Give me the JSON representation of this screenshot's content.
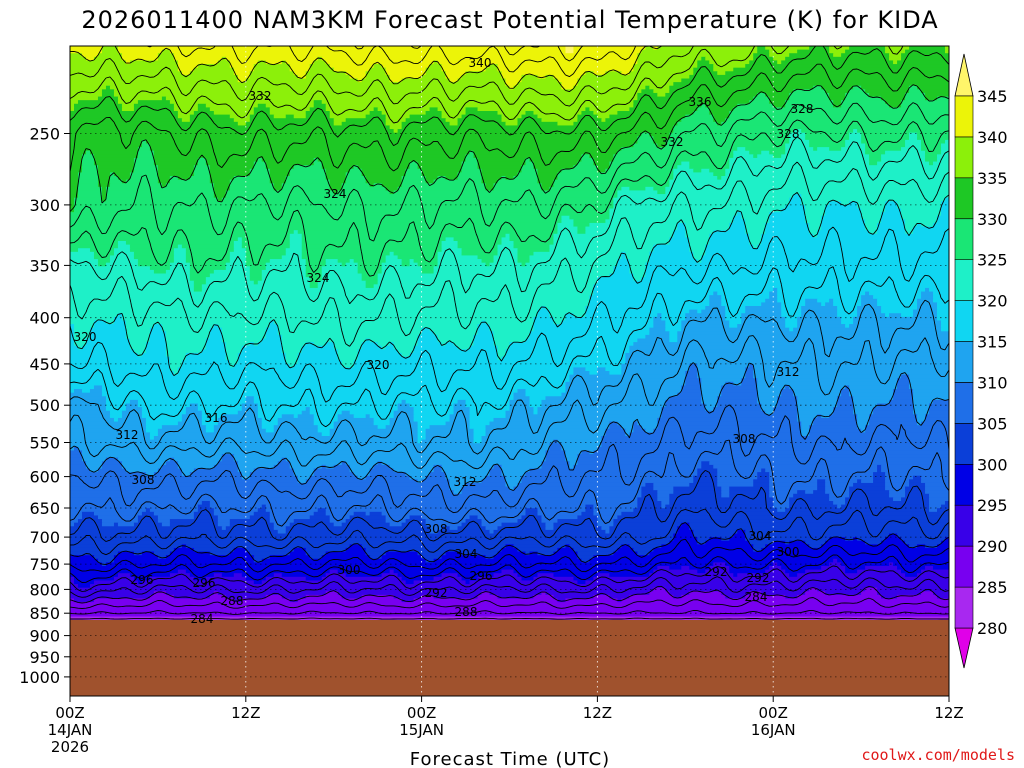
{
  "chart_data": {
    "type": "heatmap",
    "title": "2026011400 NAM3KM Forecast Potential Temperature (K) for KIDA",
    "xlabel": "Forecast Time (UTC)",
    "ylabel": "",
    "credit": "coolwx.com/models",
    "y_axis": {
      "unit": "hPa",
      "scale": "log",
      "range": [
        200,
        1050
      ],
      "ticks": [
        "250",
        "300",
        "350",
        "400",
        "450",
        "500",
        "550",
        "600",
        "650",
        "700",
        "750",
        "800",
        "850",
        "900",
        "950",
        "1000"
      ]
    },
    "x_axis": {
      "unit": "hours",
      "range": [
        0,
        60
      ],
      "ticks": [
        {
          "hour": 0,
          "lines": [
            "00Z",
            "14JAN",
            "2026"
          ]
        },
        {
          "hour": 12,
          "lines": [
            "12Z"
          ]
        },
        {
          "hour": 24,
          "lines": [
            "00Z",
            "15JAN"
          ]
        },
        {
          "hour": 36,
          "lines": [
            "12Z"
          ]
        },
        {
          "hour": 48,
          "lines": [
            "00Z",
            "16JAN"
          ]
        },
        {
          "hour": 60,
          "lines": [
            "12Z"
          ]
        }
      ]
    },
    "colorbar": {
      "levels": [
        "280",
        "285",
        "290",
        "295",
        "300",
        "305",
        "310",
        "315",
        "320",
        "325",
        "330",
        "335",
        "340",
        "345"
      ],
      "colors": [
        "#e000e8",
        "#a828f0",
        "#7800f0",
        "#3800e8",
        "#0000e6",
        "#0b3fd8",
        "#1f6fe8",
        "#1fa4f0",
        "#10d6f2",
        "#1ef0c8",
        "#1ae675",
        "#1ec825",
        "#8cf00a",
        "#ecf408",
        "#fff56a"
      ],
      "extend": "both"
    },
    "ground": {
      "color": "#a0522d",
      "pressure": 865
    },
    "contour_interval": 2,
    "contour_labels": [
      "340",
      "332",
      "336",
      "328",
      "324",
      "332",
      "328",
      "324",
      "320",
      "320",
      "316",
      "312",
      "312",
      "308",
      "312",
      "308",
      "308",
      "304",
      "304",
      "300",
      "300",
      "296",
      "296",
      "292",
      "296",
      "292",
      "292",
      "288",
      "288",
      "284",
      "284"
    ],
    "theta_profiles": [
      {
        "hour": 0,
        "profile": [
          [
            1000,
            283
          ],
          [
            865,
            283.5
          ],
          [
            850,
            286
          ],
          [
            800,
            293
          ],
          [
            750,
            299
          ],
          [
            700,
            303
          ],
          [
            650,
            306
          ],
          [
            600,
            308
          ],
          [
            550,
            312
          ],
          [
            500,
            314
          ],
          [
            450,
            318
          ],
          [
            400,
            321
          ],
          [
            350,
            324
          ],
          [
            300,
            330
          ],
          [
            250,
            331
          ],
          [
            200,
            340
          ]
        ]
      },
      {
        "hour": 6,
        "profile": [
          [
            1000,
            283
          ],
          [
            865,
            283.5
          ],
          [
            850,
            286
          ],
          [
            800,
            292
          ],
          [
            750,
            298
          ],
          [
            700,
            303
          ],
          [
            650,
            306
          ],
          [
            600,
            309
          ],
          [
            550,
            313
          ],
          [
            500,
            316
          ],
          [
            450,
            319
          ],
          [
            400,
            321
          ],
          [
            350,
            325
          ],
          [
            300,
            328
          ],
          [
            250,
            332
          ],
          [
            200,
            342
          ]
        ]
      },
      {
        "hour": 12,
        "profile": [
          [
            1000,
            283
          ],
          [
            865,
            283.5
          ],
          [
            850,
            286
          ],
          [
            800,
            292
          ],
          [
            750,
            298
          ],
          [
            700,
            303
          ],
          [
            650,
            306
          ],
          [
            600,
            309
          ],
          [
            550,
            313
          ],
          [
            500,
            316
          ],
          [
            450,
            319
          ],
          [
            400,
            322
          ],
          [
            350,
            325
          ],
          [
            300,
            328
          ],
          [
            250,
            333
          ],
          [
            200,
            342
          ]
        ]
      },
      {
        "hour": 18,
        "profile": [
          [
            1000,
            283
          ],
          [
            865,
            283.5
          ],
          [
            850,
            286
          ],
          [
            800,
            292
          ],
          [
            750,
            298
          ],
          [
            700,
            303
          ],
          [
            650,
            306
          ],
          [
            600,
            309
          ],
          [
            550,
            313
          ],
          [
            500,
            316
          ],
          [
            450,
            319
          ],
          [
            400,
            322
          ],
          [
            350,
            325
          ],
          [
            300,
            328
          ],
          [
            250,
            333
          ],
          [
            200,
            343
          ]
        ]
      },
      {
        "hour": 24,
        "profile": [
          [
            1000,
            283
          ],
          [
            865,
            283.5
          ],
          [
            850,
            286
          ],
          [
            800,
            292
          ],
          [
            750,
            298
          ],
          [
            700,
            303
          ],
          [
            650,
            307
          ],
          [
            600,
            310
          ],
          [
            550,
            314
          ],
          [
            500,
            316
          ],
          [
            450,
            319
          ],
          [
            400,
            322
          ],
          [
            350,
            325
          ],
          [
            300,
            328
          ],
          [
            250,
            333
          ],
          [
            200,
            343
          ]
        ]
      },
      {
        "hour": 30,
        "profile": [
          [
            1000,
            283
          ],
          [
            865,
            283.5
          ],
          [
            850,
            286
          ],
          [
            800,
            292
          ],
          [
            750,
            298
          ],
          [
            700,
            303
          ],
          [
            650,
            307
          ],
          [
            600,
            310
          ],
          [
            550,
            313
          ],
          [
            500,
            315
          ],
          [
            450,
            318
          ],
          [
            400,
            321
          ],
          [
            350,
            324
          ],
          [
            300,
            328
          ],
          [
            250,
            333
          ],
          [
            200,
            344
          ]
        ]
      },
      {
        "hour": 36,
        "profile": [
          [
            1000,
            283
          ],
          [
            865,
            283.5
          ],
          [
            850,
            286
          ],
          [
            800,
            292
          ],
          [
            750,
            298
          ],
          [
            700,
            303
          ],
          [
            650,
            306
          ],
          [
            600,
            308
          ],
          [
            550,
            310
          ],
          [
            500,
            313
          ],
          [
            450,
            316
          ],
          [
            400,
            319
          ],
          [
            350,
            322
          ],
          [
            300,
            326
          ],
          [
            250,
            333
          ],
          [
            200,
            344
          ]
        ]
      },
      {
        "hour": 40,
        "profile": [
          [
            1000,
            283
          ],
          [
            865,
            283.5
          ],
          [
            850,
            286
          ],
          [
            800,
            291
          ],
          [
            750,
            297
          ],
          [
            700,
            302
          ],
          [
            650,
            304
          ],
          [
            600,
            306
          ],
          [
            550,
            308
          ],
          [
            500,
            310
          ],
          [
            450,
            313
          ],
          [
            400,
            316
          ],
          [
            350,
            319
          ],
          [
            300,
            323
          ],
          [
            250,
            331
          ],
          [
            200,
            341
          ]
        ]
      },
      {
        "hour": 42,
        "profile": [
          [
            1000,
            283
          ],
          [
            865,
            283.5
          ],
          [
            850,
            286
          ],
          [
            800,
            291
          ],
          [
            750,
            296
          ],
          [
            700,
            300
          ],
          [
            650,
            303
          ],
          [
            600,
            305
          ],
          [
            550,
            307
          ],
          [
            500,
            309
          ],
          [
            450,
            311
          ],
          [
            400,
            314
          ],
          [
            350,
            318
          ],
          [
            300,
            322
          ],
          [
            250,
            328
          ],
          [
            200,
            338
          ]
        ]
      },
      {
        "hour": 48,
        "profile": [
          [
            1000,
            283
          ],
          [
            865,
            283.5
          ],
          [
            850,
            286
          ],
          [
            800,
            291
          ],
          [
            750,
            296
          ],
          [
            700,
            301
          ],
          [
            650,
            304
          ],
          [
            600,
            306
          ],
          [
            550,
            308
          ],
          [
            500,
            310
          ],
          [
            450,
            312
          ],
          [
            400,
            315
          ],
          [
            350,
            318
          ],
          [
            300,
            321
          ],
          [
            250,
            326
          ],
          [
            200,
            336
          ]
        ]
      },
      {
        "hour": 54,
        "profile": [
          [
            1000,
            283
          ],
          [
            865,
            283.5
          ],
          [
            850,
            286
          ],
          [
            800,
            291
          ],
          [
            750,
            296
          ],
          [
            700,
            301
          ],
          [
            650,
            304
          ],
          [
            600,
            306
          ],
          [
            550,
            308
          ],
          [
            500,
            310
          ],
          [
            450,
            312
          ],
          [
            400,
            314
          ],
          [
            350,
            317
          ],
          [
            300,
            320
          ],
          [
            250,
            326
          ],
          [
            200,
            335
          ]
        ]
      },
      {
        "hour": 60,
        "profile": [
          [
            1000,
            283
          ],
          [
            865,
            283.5
          ],
          [
            850,
            286
          ],
          [
            800,
            291
          ],
          [
            750,
            296
          ],
          [
            700,
            301
          ],
          [
            650,
            304
          ],
          [
            600,
            306
          ],
          [
            550,
            308
          ],
          [
            500,
            310
          ],
          [
            450,
            312
          ],
          [
            400,
            315
          ],
          [
            350,
            318
          ],
          [
            300,
            321
          ],
          [
            250,
            326
          ],
          [
            200,
            335
          ]
        ]
      }
    ]
  }
}
